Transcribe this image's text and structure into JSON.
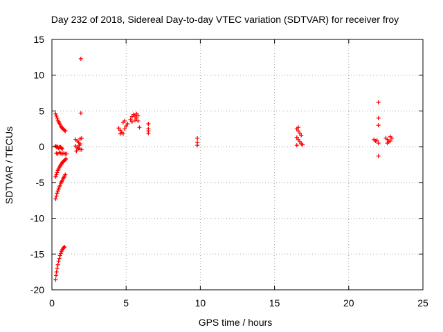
{
  "chart_data": {
    "type": "scatter",
    "title": "Day 232 of 2018, Sidereal Day-to-day VTEC variation (SDTVAR) for receiver froy",
    "xlabel": "GPS time / hours",
    "ylabel": "SDTVAR / TECUs",
    "xlim": [
      0,
      25
    ],
    "ylim": [
      -20,
      15
    ],
    "xticks": [
      0,
      5,
      10,
      15,
      20,
      25
    ],
    "yticks": [
      -20,
      -15,
      -10,
      -5,
      0,
      5,
      10,
      15
    ],
    "grid": true,
    "marker": "plus",
    "series": [
      {
        "name": "SDTVAR",
        "color": "#ff0000",
        "points": [
          [
            0.25,
            4.6
          ],
          [
            0.3,
            4.3
          ],
          [
            0.35,
            4.0
          ],
          [
            0.4,
            3.7
          ],
          [
            0.45,
            3.5
          ],
          [
            0.5,
            3.3
          ],
          [
            0.55,
            3.1
          ],
          [
            0.6,
            2.9
          ],
          [
            0.65,
            2.7
          ],
          [
            0.7,
            2.6
          ],
          [
            0.75,
            2.5
          ],
          [
            0.8,
            2.4
          ],
          [
            0.85,
            2.3
          ],
          [
            0.9,
            2.2
          ],
          [
            0.25,
            0.1
          ],
          [
            0.3,
            0.0
          ],
          [
            0.35,
            -0.1
          ],
          [
            0.4,
            0.0
          ],
          [
            0.45,
            -0.2
          ],
          [
            0.5,
            -0.1
          ],
          [
            0.55,
            0.0
          ],
          [
            0.6,
            -0.1
          ],
          [
            0.65,
            -0.2
          ],
          [
            0.7,
            -0.3
          ],
          [
            0.3,
            -0.9
          ],
          [
            0.4,
            -1.0
          ],
          [
            0.5,
            -0.8
          ],
          [
            0.6,
            -0.9
          ],
          [
            0.7,
            -1.0
          ],
          [
            0.8,
            -0.9
          ],
          [
            0.9,
            -1.0
          ],
          [
            1.0,
            -1.0
          ],
          [
            0.25,
            -4.2
          ],
          [
            0.3,
            -3.9
          ],
          [
            0.35,
            -3.6
          ],
          [
            0.4,
            -3.3
          ],
          [
            0.45,
            -3.1
          ],
          [
            0.5,
            -2.9
          ],
          [
            0.55,
            -2.7
          ],
          [
            0.6,
            -2.5
          ],
          [
            0.65,
            -2.4
          ],
          [
            0.7,
            -2.2
          ],
          [
            0.75,
            -2.1
          ],
          [
            0.8,
            -2.0
          ],
          [
            0.85,
            -1.9
          ],
          [
            0.9,
            -1.8
          ],
          [
            0.95,
            -1.7
          ],
          [
            0.25,
            -7.3
          ],
          [
            0.3,
            -6.9
          ],
          [
            0.35,
            -6.5
          ],
          [
            0.4,
            -6.2
          ],
          [
            0.45,
            -5.9
          ],
          [
            0.5,
            -5.6
          ],
          [
            0.55,
            -5.4
          ],
          [
            0.6,
            -5.1
          ],
          [
            0.65,
            -4.9
          ],
          [
            0.7,
            -4.7
          ],
          [
            0.75,
            -4.5
          ],
          [
            0.8,
            -4.3
          ],
          [
            0.85,
            -4.1
          ],
          [
            0.9,
            -3.9
          ],
          [
            0.25,
            -18.6
          ],
          [
            0.28,
            -18.0
          ],
          [
            0.31,
            -17.5
          ],
          [
            0.35,
            -17.0
          ],
          [
            0.4,
            -16.5
          ],
          [
            0.45,
            -16.0
          ],
          [
            0.5,
            -15.6
          ],
          [
            0.55,
            -15.2
          ],
          [
            0.6,
            -14.9
          ],
          [
            0.65,
            -14.6
          ],
          [
            0.7,
            -14.4
          ],
          [
            0.75,
            -14.2
          ],
          [
            0.8,
            -14.1
          ],
          [
            0.85,
            -14.0
          ],
          [
            1.6,
            1.0
          ],
          [
            1.7,
            0.8
          ],
          [
            1.8,
            0.6
          ],
          [
            1.9,
            0.4
          ],
          [
            1.6,
            0.1
          ],
          [
            1.7,
            -0.1
          ],
          [
            1.8,
            -0.2
          ],
          [
            1.9,
            -0.4
          ],
          [
            1.65,
            -0.6
          ],
          [
            1.75,
            -0.3
          ],
          [
            1.85,
            0.2
          ],
          [
            1.9,
            1.1
          ],
          [
            2.0,
            1.2
          ],
          [
            2.0,
            -0.4
          ],
          [
            1.95,
            12.3
          ],
          [
            1.95,
            4.7
          ],
          [
            4.5,
            2.6
          ],
          [
            4.6,
            2.3
          ],
          [
            4.7,
            2.0
          ],
          [
            4.8,
            1.8
          ],
          [
            4.9,
            2.5
          ],
          [
            5.0,
            2.9
          ],
          [
            5.1,
            3.2
          ],
          [
            4.6,
            1.8
          ],
          [
            4.8,
            3.4
          ],
          [
            4.9,
            3.6
          ],
          [
            5.3,
            3.8
          ],
          [
            5.4,
            4.2
          ],
          [
            5.5,
            4.5
          ],
          [
            5.6,
            4.3
          ],
          [
            5.7,
            4.0
          ],
          [
            5.8,
            3.6
          ],
          [
            5.4,
            3.5
          ],
          [
            5.6,
            3.7
          ],
          [
            5.7,
            4.6
          ],
          [
            5.8,
            4.4
          ],
          [
            5.9,
            2.7
          ],
          [
            6.5,
            3.2
          ],
          [
            6.5,
            2.5
          ],
          [
            6.5,
            2.2
          ],
          [
            6.5,
            1.9
          ],
          [
            9.8,
            1.2
          ],
          [
            9.8,
            0.6
          ],
          [
            9.8,
            0.2
          ],
          [
            16.5,
            2.5
          ],
          [
            16.6,
            2.2
          ],
          [
            16.7,
            1.9
          ],
          [
            16.8,
            1.6
          ],
          [
            16.5,
            1.3
          ],
          [
            16.6,
            1.0
          ],
          [
            16.7,
            0.7
          ],
          [
            16.8,
            0.4
          ],
          [
            16.5,
            0.2
          ],
          [
            16.9,
            0.3
          ],
          [
            16.6,
            2.7
          ],
          [
            21.7,
            1.0
          ],
          [
            21.8,
            0.8
          ],
          [
            21.9,
            0.9
          ],
          [
            22.0,
            0.5
          ],
          [
            22.0,
            6.2
          ],
          [
            22.0,
            4.0
          ],
          [
            22.0,
            3.0
          ],
          [
            22.0,
            -1.3
          ],
          [
            22.5,
            1.2
          ],
          [
            22.6,
            1.0
          ],
          [
            22.7,
            0.7
          ],
          [
            22.8,
            1.4
          ],
          [
            22.9,
            1.2
          ],
          [
            22.6,
            0.5
          ],
          [
            22.8,
            0.8
          ]
        ]
      }
    ]
  }
}
